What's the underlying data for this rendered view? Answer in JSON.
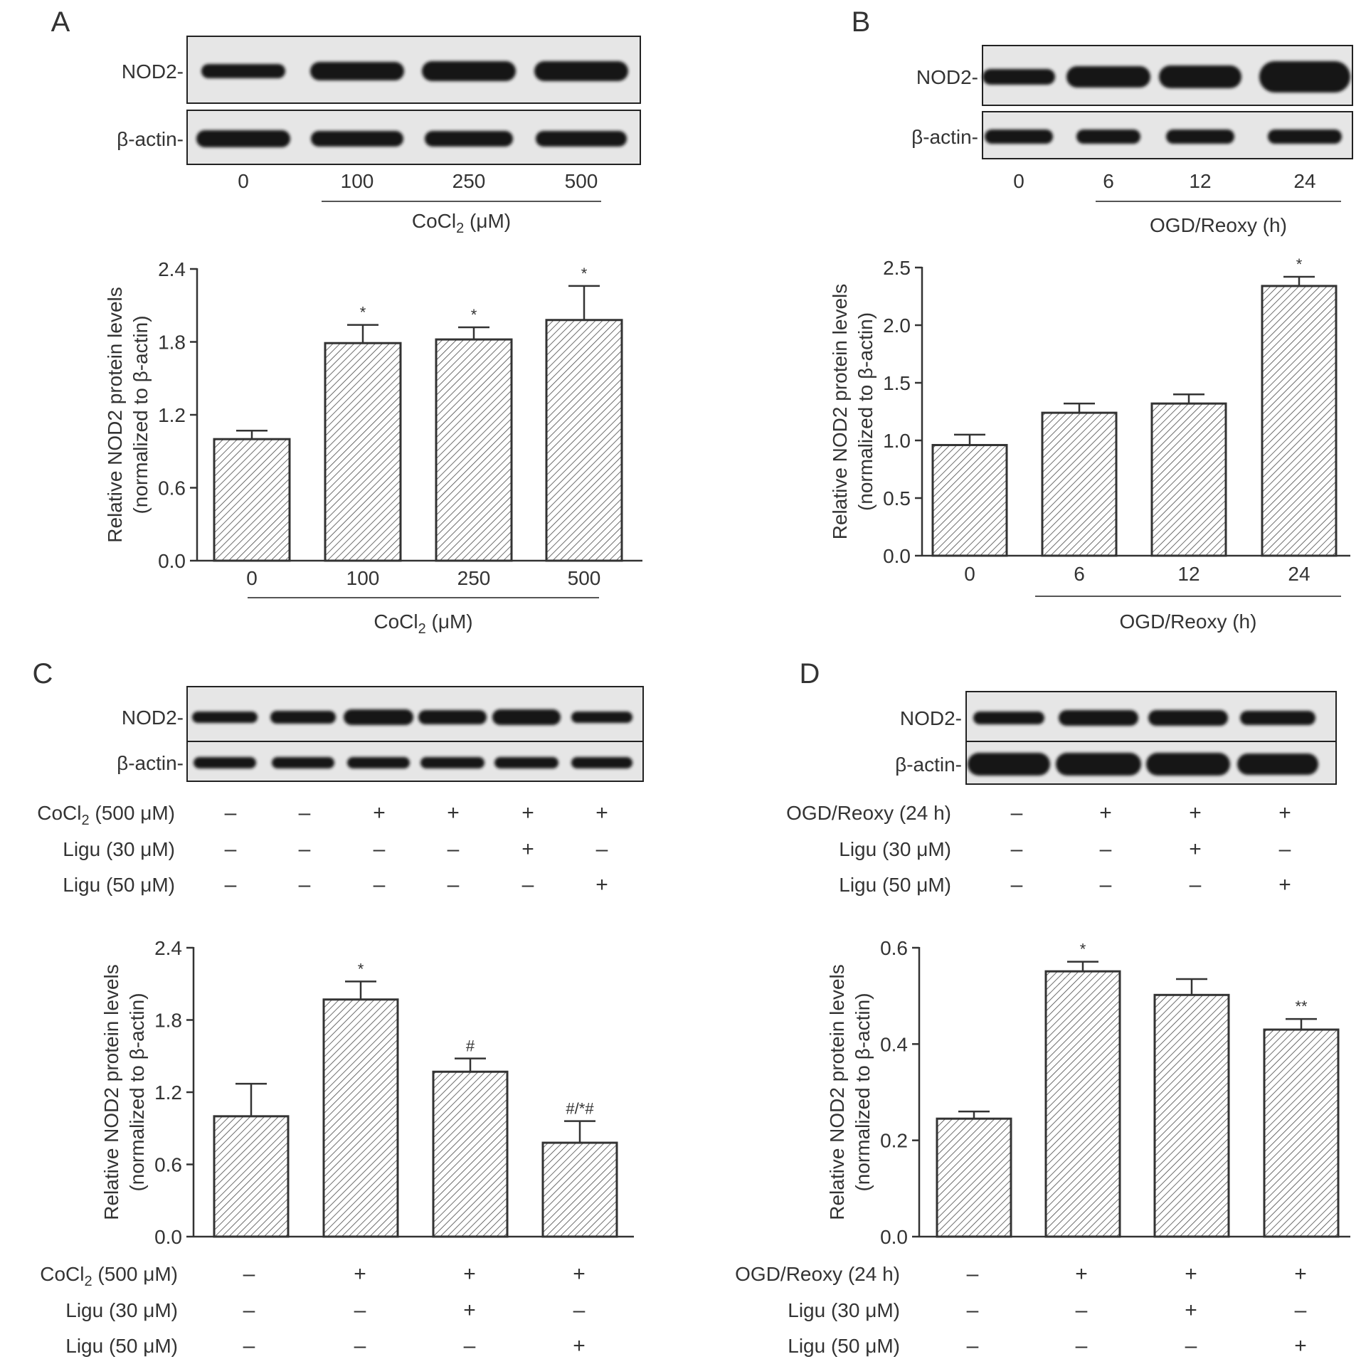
{
  "colors": {
    "bar_fill": "#ffffff",
    "bar_hatch": "#444444",
    "axis": "#333333",
    "band": "#151515",
    "blot_bg": "#e6e6e6"
  },
  "chart_data": [
    {
      "panel": "A",
      "type": "bar",
      "blot": {
        "labels": [
          "NOD2-",
          "β-actin-"
        ],
        "lanes": [
          "0",
          "100",
          "250",
          "500"
        ],
        "group_label": "CoCl₂ (μM)"
      },
      "categories": [
        "0",
        "100",
        "250",
        "500"
      ],
      "values": [
        1.0,
        1.79,
        1.82,
        1.98
      ],
      "errors": [
        0.07,
        0.15,
        0.1,
        0.28
      ],
      "significance": [
        "",
        "*",
        "*",
        "*"
      ],
      "ylabel_line1": "Relative NOD2 protein levels",
      "ylabel_line2": "(normalized to β-actin)",
      "ylim": [
        0,
        2.4
      ],
      "yticks": [
        "0.0",
        "0.6",
        "1.2",
        "1.8",
        "2.4"
      ],
      "x_group_label": "CoCl₂ (μM)",
      "grid": false
    },
    {
      "panel": "B",
      "type": "bar",
      "blot": {
        "labels": [
          "NOD2-",
          "β-actin-"
        ],
        "lanes": [
          "0",
          "6",
          "12",
          "24"
        ],
        "group_label": "OGD/Reoxy (h)"
      },
      "categories": [
        "0",
        "6",
        "12",
        "24"
      ],
      "values": [
        0.96,
        1.24,
        1.32,
        2.34
      ],
      "errors": [
        0.09,
        0.08,
        0.08,
        0.08
      ],
      "significance": [
        "",
        "",
        "",
        "*"
      ],
      "ylabel_line1": "Relative NOD2 protein levels",
      "ylabel_line2": "(normalized to β-actin)",
      "ylim": [
        0,
        2.5
      ],
      "yticks": [
        "0.0",
        "0.5",
        "1.0",
        "1.5",
        "2.0",
        "2.5"
      ],
      "x_group_label": "OGD/Reoxy (h)",
      "grid": false
    },
    {
      "panel": "C",
      "type": "bar",
      "blot": {
        "labels": [
          "NOD2-",
          "β-actin-"
        ],
        "conditions": [
          {
            "label": "CoCl₂ (500 μM)",
            "marks": [
              "–",
              "–",
              "+",
              "+",
              "+",
              "+"
            ]
          },
          {
            "label": "Ligu (30 μM)",
            "marks": [
              "–",
              "–",
              "–",
              "–",
              "+",
              "–"
            ]
          },
          {
            "label": "Ligu (50 μM)",
            "marks": [
              "–",
              "–",
              "–",
              "–",
              "–",
              "+"
            ]
          }
        ]
      },
      "conditions": [
        {
          "label": "CoCl₂ (500 μM)",
          "marks": [
            "–",
            "+",
            "+",
            "+"
          ]
        },
        {
          "label": "Ligu (30 μM)",
          "marks": [
            "–",
            "–",
            "+",
            "–"
          ]
        },
        {
          "label": "Ligu (50 μM)",
          "marks": [
            "–",
            "–",
            "–",
            "+"
          ]
        }
      ],
      "values": [
        1.0,
        1.97,
        1.37,
        0.78
      ],
      "errors": [
        0.27,
        0.15,
        0.11,
        0.18
      ],
      "significance": [
        "",
        "*",
        "#",
        "#/*#"
      ],
      "ylabel_line1": "Relative NOD2 protein levels",
      "ylabel_line2": "(normalized to β-actin)",
      "ylim": [
        0,
        2.4
      ],
      "yticks": [
        "0.0",
        "0.6",
        "1.2",
        "1.8",
        "2.4"
      ],
      "grid": false
    },
    {
      "panel": "D",
      "type": "bar",
      "blot": {
        "labels": [
          "NOD2-",
          "β-actin-"
        ],
        "conditions": [
          {
            "label": "OGD/Reoxy (24 h)",
            "marks": [
              "–",
              "+",
              "+",
              "+"
            ]
          },
          {
            "label": "Ligu (30 μM)",
            "marks": [
              "–",
              "–",
              "+",
              "–"
            ]
          },
          {
            "label": "Ligu (50 μM)",
            "marks": [
              "–",
              "–",
              "–",
              "+"
            ]
          }
        ]
      },
      "conditions": [
        {
          "label": "OGD/Reoxy (24 h)",
          "marks": [
            "–",
            "+",
            "+",
            "+"
          ]
        },
        {
          "label": "Ligu (30 μM)",
          "marks": [
            "–",
            "–",
            "+",
            "–"
          ]
        },
        {
          "label": "Ligu (50 μM)",
          "marks": [
            "–",
            "–",
            "–",
            "+"
          ]
        }
      ],
      "values": [
        0.245,
        0.551,
        0.502,
        0.43
      ],
      "errors": [
        0.015,
        0.02,
        0.033,
        0.022
      ],
      "significance": [
        "",
        "*",
        "",
        "**"
      ],
      "ylabel_line1": "Relative NOD2 protein levels",
      "ylabel_line2": "(normalized to β-actin)",
      "ylim": [
        0,
        0.6
      ],
      "yticks": [
        "0.0",
        "0.2",
        "0.4",
        "0.6"
      ],
      "grid": false
    }
  ]
}
